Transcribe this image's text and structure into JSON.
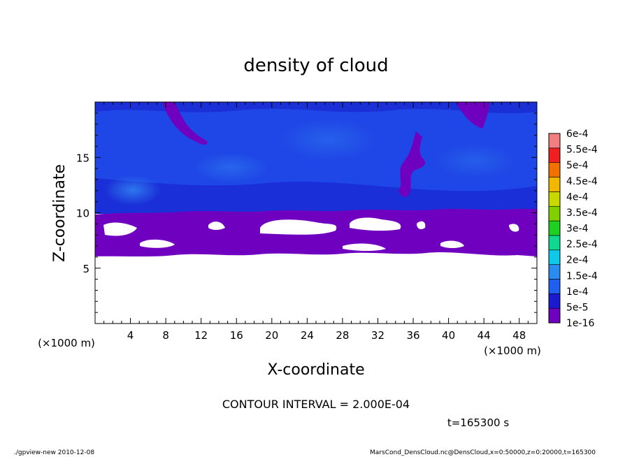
{
  "chart_data": {
    "type": "heatmap",
    "title": "density of cloud",
    "xlabel": "X-coordinate",
    "ylabel": "Z-coordinate",
    "x_unit": "(×1000 m)",
    "x_unit_right": "(×1000 m)",
    "xlim": [
      0,
      50
    ],
    "ylim": [
      0,
      20
    ],
    "xticks": [
      4,
      8,
      12,
      16,
      20,
      24,
      28,
      32,
      36,
      40,
      44,
      48
    ],
    "yticks": [
      5,
      10,
      15
    ],
    "colorbar": {
      "levels": [
        "1e-16",
        "5e-5",
        "1e-4",
        "1.5e-4",
        "2e-4",
        "2.5e-4",
        "3e-4",
        "3.5e-4",
        "4e-4",
        "4.5e-4",
        "5e-4",
        "5.5e-4",
        "6e-4"
      ],
      "colors": [
        "#7000c0",
        "#1a1ad0",
        "#1f5ff0",
        "#2b8cf0",
        "#10c8e8",
        "#10d890",
        "#20d020",
        "#80d000",
        "#c8d800",
        "#f0b800",
        "#f07000",
        "#f02020",
        "#f08080"
      ]
    },
    "contour_interval_label": "CONTOUR INTERVAL = 2.000E-04",
    "time_label": "t=165300 s",
    "footer_left": "./gpview-new   2010-12-08",
    "footer_right": "MarsCond_DensCloud.nc@DensCloud,x=0:50000,z=0:20000,t=165300",
    "field_regions": [
      {
        "name": "cloud-base-band",
        "color": "#7000c0",
        "x_range": [
          0,
          50
        ],
        "z_range": [
          6.2,
          10.0
        ]
      },
      {
        "name": "blue-cloud-layer",
        "color": "#1f4fe8",
        "x_range": [
          0,
          50
        ],
        "z_range": [
          10.0,
          20.0
        ]
      },
      {
        "name": "clear-air",
        "color": "#ffffff",
        "x_range": [
          0,
          50
        ],
        "z_range": [
          0,
          6.2
        ]
      }
    ]
  }
}
